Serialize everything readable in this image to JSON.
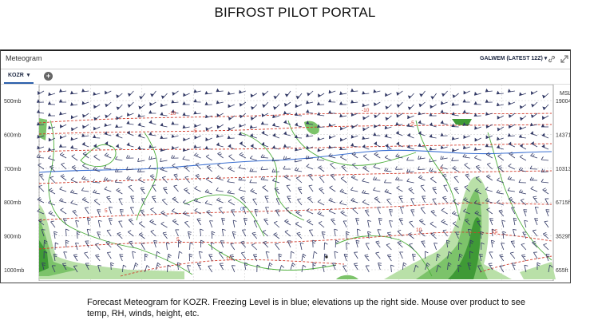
{
  "slide_title": "BIFROST PILOT PORTAL",
  "panel": {
    "title": "Meteogram",
    "model_select": "GALWEM (LATEST 12Z)",
    "station_tab": "KOZR",
    "add_tab": "+",
    "icons": {
      "model_dropdown": "chevron-down-icon",
      "link": "link-icon",
      "expand": "expand-icon",
      "station_dropdown": "caret-down-icon",
      "add": "plus-circle-icon"
    }
  },
  "chart": {
    "pressure_labels": [
      "500mb",
      "600mb",
      "700mb",
      "800mb",
      "900mb",
      "1000mb"
    ],
    "right_header": "MSL",
    "elevation_labels": [
      "19004ft",
      "14371ft",
      "10313ft",
      "6715ft",
      "3529ft",
      "655ft"
    ],
    "temp_contour_labels": [
      "-10",
      "-5",
      "-10",
      "-5",
      "0",
      "-5",
      "5",
      "0",
      "5",
      "10",
      "15",
      "15"
    ],
    "colors": {
      "freezing_level": "#3a6fd1",
      "temperature": "#d23a2a",
      "rh_line": "#4caf3a",
      "rh_fill_light": "#b9e0a8",
      "rh_fill_mid": "#7cc36a",
      "rh_fill_dark": "#3f9a36",
      "wind_barb": "#333a66",
      "grid": "#c9c9c9"
    }
  },
  "caption": "Forecast Meteogram for KOZR. Freezing Level is in blue; elevations up the right side. Mouse over product to see temp, RH, winds, height, etc."
}
